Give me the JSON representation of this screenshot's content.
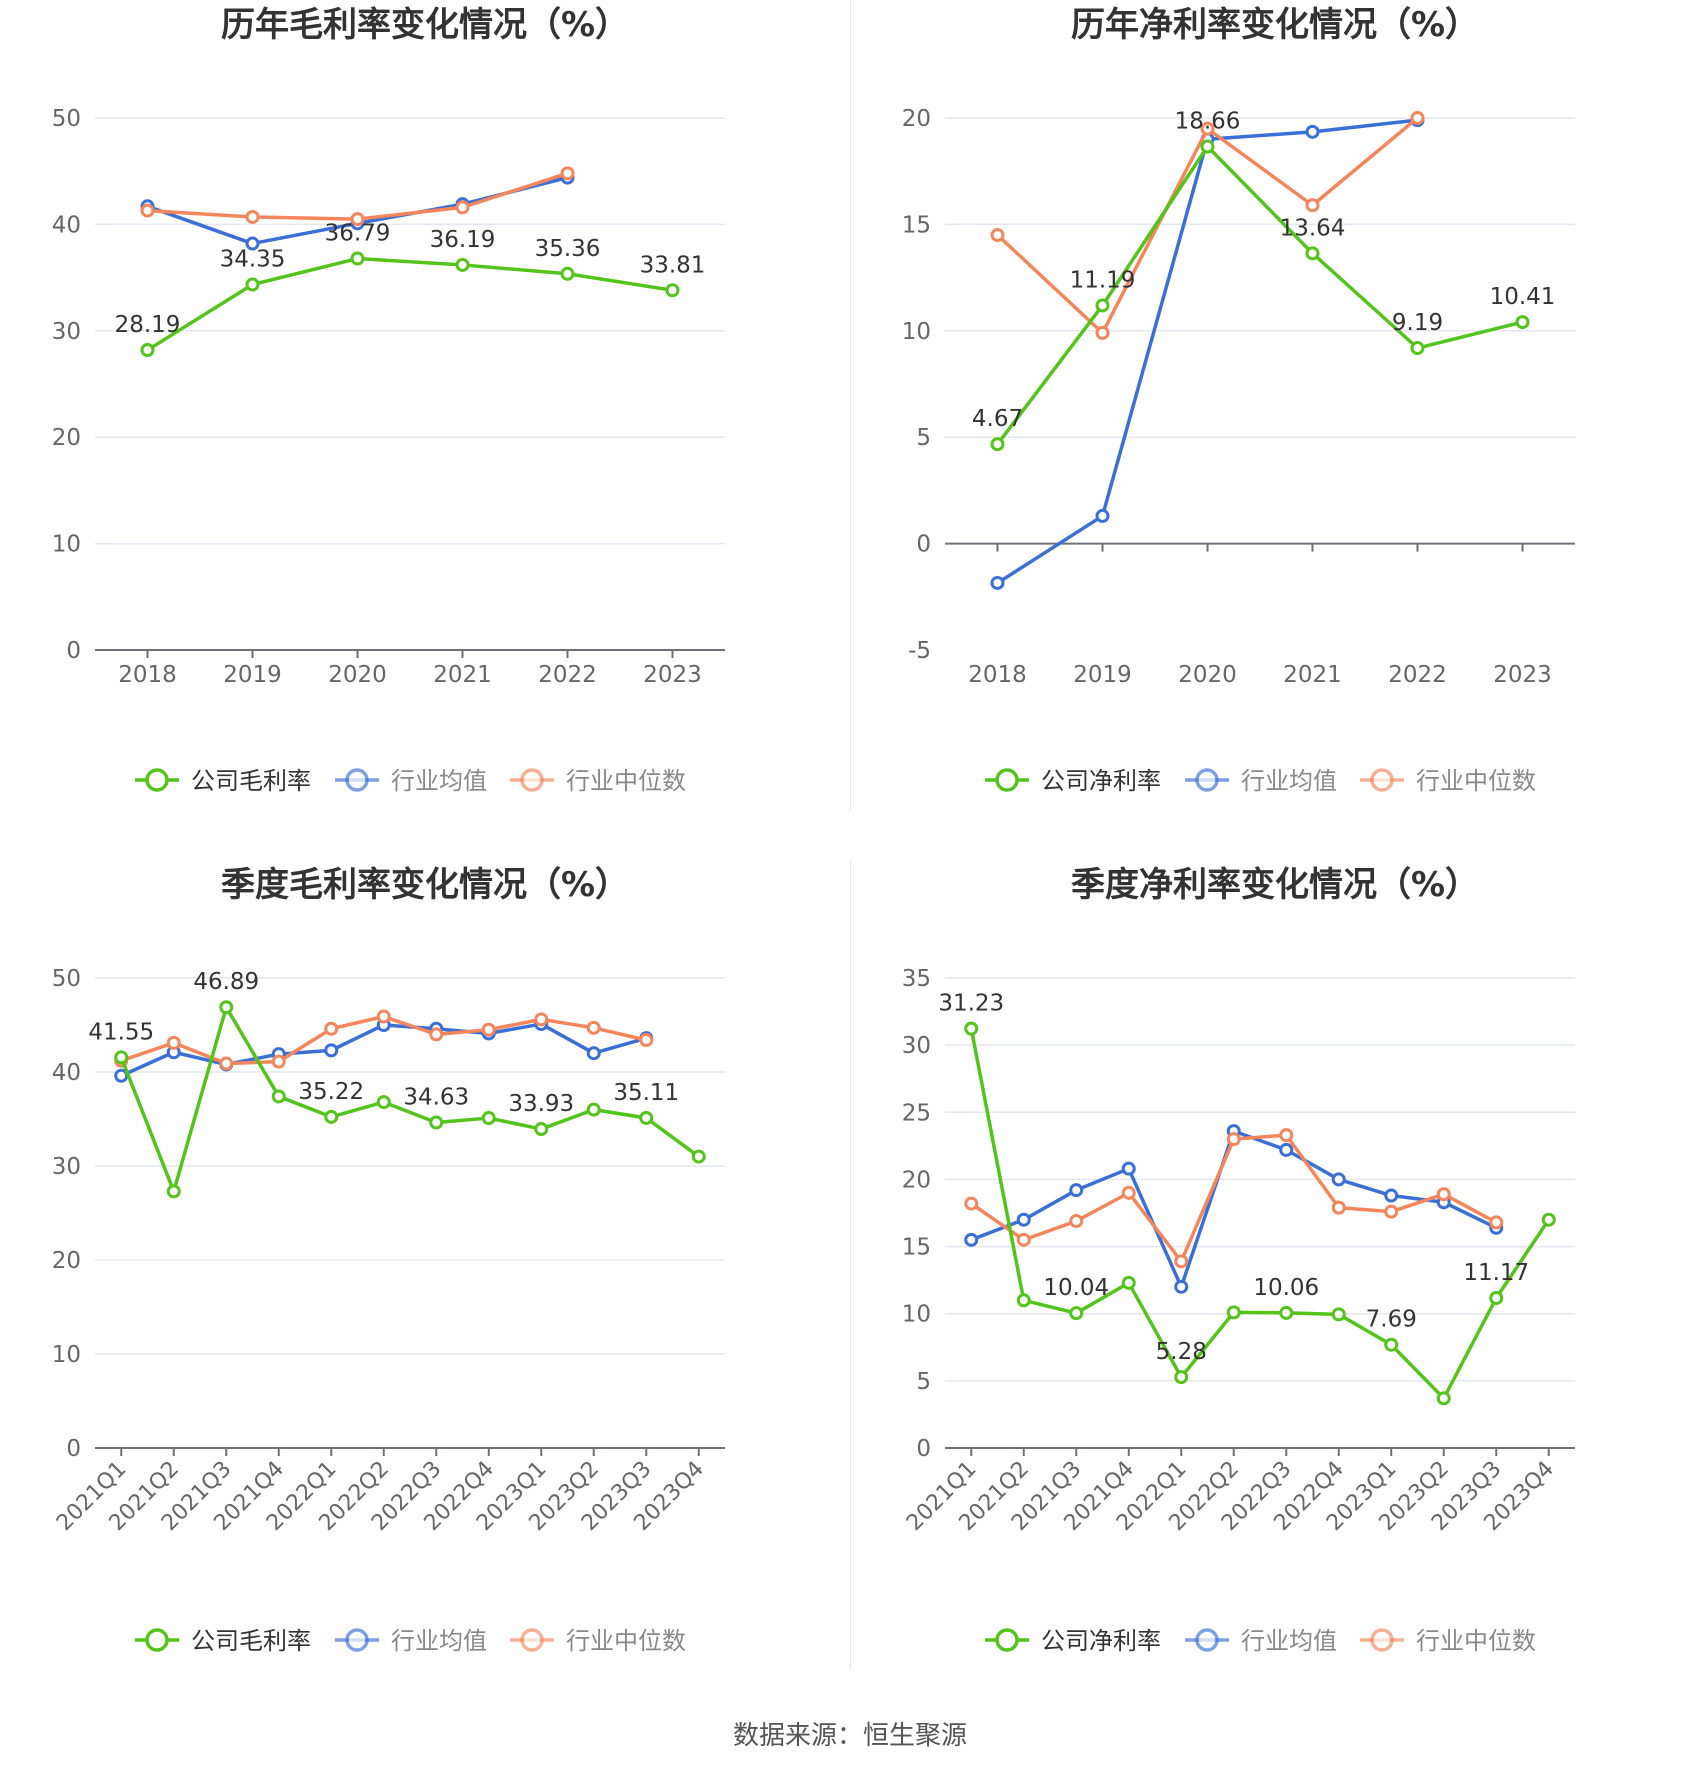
{
  "colors": {
    "company": "#52c41a",
    "industry_avg": "#3a6fd8",
    "industry_median": "#f5855b"
  },
  "source": "数据来源：恒生聚源",
  "chart_data": [
    {
      "type": "line",
      "title": "历年毛利率变化情况（%）",
      "categories": [
        "2018",
        "2019",
        "2020",
        "2021",
        "2022",
        "2023"
      ],
      "ylim": [
        0,
        50
      ],
      "yticks": [
        0,
        10,
        20,
        30,
        40,
        50
      ],
      "series": [
        {
          "name": "公司毛利率",
          "values": [
            28.19,
            34.35,
            36.79,
            36.19,
            35.36,
            33.81
          ],
          "labels": [
            "28.19",
            "34.35",
            "36.79",
            "36.19",
            "35.36",
            "33.81"
          ]
        },
        {
          "name": "行业均值",
          "values": [
            41.7,
            38.2,
            40.1,
            41.9,
            44.4,
            null
          ]
        },
        {
          "name": "行业中位数",
          "values": [
            41.3,
            40.7,
            40.5,
            41.6,
            44.8,
            null
          ]
        }
      ]
    },
    {
      "type": "line",
      "title": "历年净利率变化情况（%）",
      "categories": [
        "2018",
        "2019",
        "2020",
        "2021",
        "2022",
        "2023"
      ],
      "ylim": [
        -5,
        20
      ],
      "yticks": [
        -5,
        0,
        5,
        10,
        15,
        20
      ],
      "series": [
        {
          "name": "公司净利率",
          "values": [
            4.67,
            11.19,
            18.66,
            13.64,
            9.19,
            10.41
          ],
          "labels": [
            "4.67",
            "11.19",
            "18.66",
            "13.64",
            "9.19",
            "10.41"
          ]
        },
        {
          "name": "行业均值",
          "values": [
            -1.85,
            1.3,
            19.0,
            19.35,
            19.9,
            null
          ]
        },
        {
          "name": "行业中位数",
          "values": [
            14.5,
            9.9,
            19.5,
            15.9,
            20.0,
            null
          ]
        }
      ]
    },
    {
      "type": "line",
      "title": "季度毛利率变化情况（%）",
      "categories": [
        "2021Q1",
        "2021Q2",
        "2021Q3",
        "2021Q4",
        "2022Q1",
        "2022Q2",
        "2022Q3",
        "2022Q4",
        "2023Q1",
        "2023Q2",
        "2023Q3",
        "2023Q4"
      ],
      "ylim": [
        0,
        50
      ],
      "yticks": [
        0,
        10,
        20,
        30,
        40,
        50
      ],
      "series": [
        {
          "name": "公司毛利率",
          "values": [
            41.55,
            27.3,
            46.89,
            37.4,
            35.22,
            36.8,
            34.63,
            35.1,
            33.93,
            36.0,
            35.11,
            31.0
          ],
          "labels": [
            "41.55",
            "",
            "46.89",
            "",
            "35.22",
            "",
            "34.63",
            "",
            "33.93",
            "",
            "35.11",
            ""
          ]
        },
        {
          "name": "行业均值",
          "values": [
            39.6,
            42.1,
            40.8,
            41.9,
            42.3,
            45.0,
            44.6,
            44.1,
            45.1,
            42.0,
            43.6,
            null
          ]
        },
        {
          "name": "行业中位数",
          "values": [
            41.2,
            43.1,
            40.9,
            41.1,
            44.6,
            45.9,
            44.0,
            44.5,
            45.6,
            44.7,
            43.4,
            null
          ]
        }
      ]
    },
    {
      "type": "line",
      "title": "季度净利率变化情况（%）",
      "categories": [
        "2021Q1",
        "2021Q2",
        "2021Q3",
        "2021Q4",
        "2022Q1",
        "2022Q2",
        "2022Q3",
        "2022Q4",
        "2023Q1",
        "2023Q2",
        "2023Q3",
        "2023Q4"
      ],
      "ylim": [
        0,
        35
      ],
      "yticks": [
        0,
        5,
        10,
        15,
        20,
        25,
        30,
        35
      ],
      "series": [
        {
          "name": "公司净利率",
          "values": [
            31.23,
            11.0,
            10.04,
            12.3,
            5.28,
            10.1,
            10.06,
            9.95,
            7.69,
            3.7,
            11.17,
            17.0
          ],
          "labels": [
            "31.23",
            "",
            "10.04",
            "",
            "5.28",
            "",
            "10.06",
            "",
            "7.69",
            "",
            "11.17",
            ""
          ]
        },
        {
          "name": "行业均值",
          "values": [
            15.5,
            17.0,
            19.2,
            20.8,
            12.0,
            23.6,
            22.2,
            20.0,
            18.8,
            18.3,
            16.4,
            null
          ]
        },
        {
          "name": "行业中位数",
          "values": [
            18.2,
            15.5,
            16.9,
            19.0,
            13.9,
            23.0,
            23.3,
            17.9,
            17.6,
            18.9,
            16.8,
            null
          ]
        }
      ]
    }
  ]
}
